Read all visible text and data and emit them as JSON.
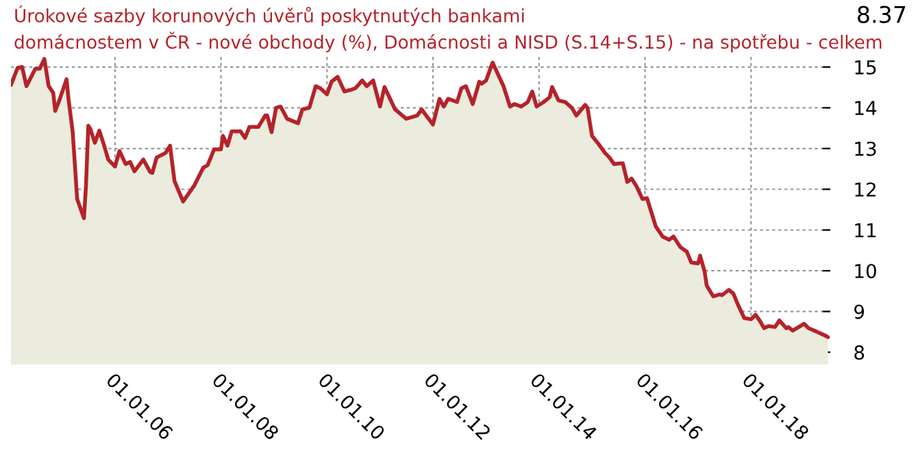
{
  "chart_data": {
    "type": "area",
    "title": "Úrokové sazby korunových úvěrů poskytnutých bankami\ndomácnostem v ČR - nové obchody (%), Domácnosti a NISD (S.14+S.15) - na spotřebu - celkem",
    "annotations": [
      "8.37"
    ],
    "x": [
      "2004-01-15",
      "2004-03-01",
      "2004-04-01",
      "2004-05-01",
      "2004-07-01",
      "2004-08-01",
      "2004-09-01",
      "2004-10-01",
      "2004-11-01",
      "2004-11-15",
      "2004-12-15",
      "2005-02-01",
      "2005-02-15",
      "2005-03-15",
      "2005-04-01",
      "2005-04-15",
      "2005-06-01",
      "2005-06-15",
      "2005-07-01",
      "2005-07-15",
      "2005-08-15",
      "2005-09-15",
      "2005-10-15",
      "2005-11-15",
      "2006-01-01",
      "2006-02-01",
      "2006-03-15",
      "2006-04-15",
      "2006-05-15",
      "2006-07-15",
      "2006-09-01",
      "2006-09-15",
      "2006-10-15",
      "2006-12-15",
      "2007-01-15",
      "2007-02-15",
      "2007-04-15",
      "2007-07-01",
      "2007-09-01",
      "2007-10-01",
      "2007-11-15",
      "2008-01-01",
      "2008-01-15",
      "2008-02-15",
      "2008-03-15",
      "2008-05-15",
      "2008-06-15",
      "2008-07-15",
      "2008-09-15",
      "2008-11-01",
      "2008-11-15",
      "2008-12-15",
      "2009-01-15",
      "2009-02-15",
      "2009-04-01",
      "2009-06-15",
      "2009-07-15",
      "2009-09-01",
      "2009-10-15",
      "2009-11-15",
      "2010-01-01",
      "2010-02-01",
      "2010-03-15",
      "2010-05-01",
      "2010-06-15",
      "2010-07-15",
      "2010-09-01",
      "2010-10-01",
      "2010-11-15",
      "2011-01-01",
      "2011-02-01",
      "2011-04-15",
      "2011-07-01",
      "2011-09-15",
      "2011-10-15",
      "2011-11-15",
      "2012-01-01",
      "2012-02-15",
      "2012-03-15",
      "2012-04-15",
      "2012-06-15",
      "2012-07-15",
      "2012-08-15",
      "2012-10-01",
      "2012-11-15",
      "2012-12-01",
      "2013-01-01",
      "2013-02-15",
      "2013-03-15",
      "2013-05-01",
      "2013-06-15",
      "2013-07-15",
      "2013-09-01",
      "2013-10-15",
      "2013-11-15",
      "2013-12-15",
      "2014-02-01",
      "2014-03-15",
      "2014-04-01",
      "2014-05-15",
      "2014-07-01",
      "2014-08-15",
      "2014-09-15",
      "2014-11-15",
      "2014-12-01",
      "2015-01-01",
      "2015-02-15",
      "2015-04-01",
      "2015-05-01",
      "2015-06-01",
      "2015-08-01",
      "2015-09-01",
      "2015-10-01",
      "2015-11-01",
      "2015-12-15",
      "2016-01-15",
      "2016-03-15",
      "2016-05-01",
      "2016-06-15",
      "2016-07-15",
      "2016-09-01",
      "2016-10-15",
      "2016-11-15",
      "2017-01-01",
      "2017-01-15",
      "2017-02-15",
      "2017-03-01",
      "2017-04-15",
      "2017-06-01",
      "2017-06-15",
      "2017-08-01",
      "2017-09-01",
      "2017-10-01",
      "2017-11-15",
      "2018-01-01",
      "2018-02-01",
      "2018-03-01",
      "2018-04-01",
      "2018-05-01",
      "2018-06-15",
      "2018-07-15",
      "2018-09-01",
      "2018-09-15",
      "2018-10-15",
      "2019-01-01",
      "2019-02-01",
      "2019-04-01",
      "2019-06-01",
      "2019-06-15"
    ],
    "series": [
      {
        "color": "#b5232a",
        "values": [
          14.56,
          14.98,
          15.0,
          14.53,
          14.96,
          14.96,
          15.2,
          14.53,
          14.37,
          13.92,
          14.2,
          14.7,
          14.2,
          13.42,
          12.53,
          11.76,
          11.29,
          12.09,
          13.56,
          13.48,
          13.14,
          13.44,
          13.11,
          12.73,
          12.56,
          12.94,
          12.62,
          12.67,
          12.44,
          12.73,
          12.42,
          12.4,
          12.78,
          12.89,
          13.07,
          12.2,
          11.7,
          12.09,
          12.53,
          12.59,
          12.98,
          12.98,
          13.31,
          13.07,
          13.42,
          13.42,
          13.26,
          13.53,
          13.53,
          13.81,
          13.81,
          13.4,
          14.0,
          14.03,
          13.73,
          13.62,
          13.96,
          14.0,
          14.53,
          14.48,
          14.33,
          14.64,
          14.76,
          14.4,
          14.44,
          14.48,
          14.67,
          14.53,
          14.67,
          14.03,
          14.51,
          13.96,
          13.73,
          13.81,
          13.96,
          13.81,
          13.59,
          14.22,
          14.03,
          14.22,
          14.14,
          14.48,
          14.53,
          14.09,
          14.64,
          14.59,
          14.67,
          15.11,
          14.89,
          14.53,
          14.03,
          14.09,
          14.03,
          14.14,
          14.4,
          14.03,
          14.14,
          14.26,
          14.51,
          14.18,
          14.14,
          14.0,
          13.81,
          14.07,
          14.0,
          13.31,
          13.11,
          12.89,
          12.78,
          12.62,
          12.64,
          12.18,
          12.26,
          12.09,
          11.76,
          11.78,
          11.09,
          10.84,
          10.76,
          10.84,
          10.58,
          10.47,
          10.2,
          10.18,
          10.37,
          9.98,
          9.64,
          9.37,
          9.42,
          9.4,
          9.53,
          9.44,
          9.18,
          8.84,
          8.81,
          8.92,
          8.78,
          8.59,
          8.64,
          8.62,
          8.78,
          8.59,
          8.62,
          8.53,
          8.7,
          8.59,
          8.5,
          8.4,
          8.37
        ]
      }
    ],
    "xlim": [
      "2004-01-15",
      "2019-07-01"
    ],
    "ylim": [
      7.7,
      15.3
    ],
    "yticks": [
      8,
      9,
      10,
      11,
      12,
      13,
      14,
      15
    ],
    "xticks": [
      {
        "value": "2006-01-01",
        "label": "01.01.06"
      },
      {
        "value": "2008-01-01",
        "label": "01.01.08"
      },
      {
        "value": "2010-01-01",
        "label": "01.01.10"
      },
      {
        "value": "2012-01-01",
        "label": "01.01.12"
      },
      {
        "value": "2014-01-01",
        "label": "01.01.14"
      },
      {
        "value": "2016-01-01",
        "label": "01.01.16"
      },
      {
        "value": "2018-01-01",
        "label": "01.01.18"
      }
    ],
    "grid": true,
    "line_style": "solid"
  }
}
